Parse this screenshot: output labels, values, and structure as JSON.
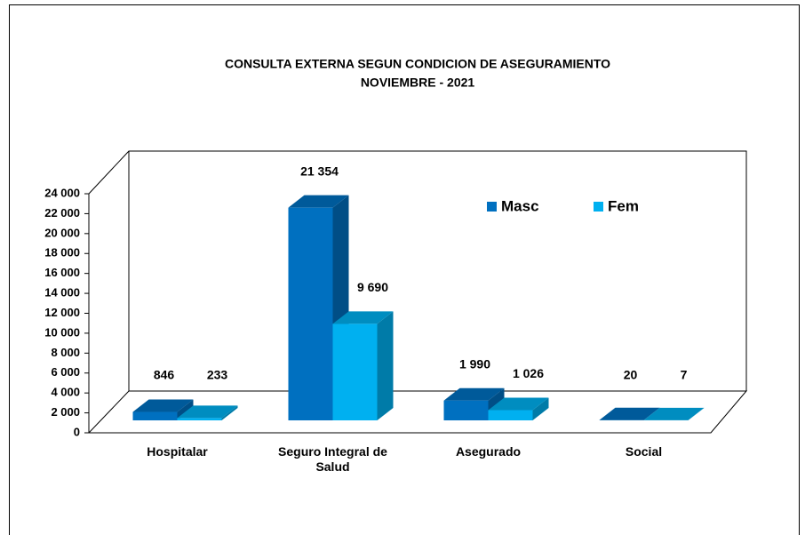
{
  "chart_data": {
    "type": "bar3d",
    "title": "CONSULTA EXTERNA SEGUN CONDICION  DE ASEGURAMIENTO",
    "subtitle": "NOVIEMBRE  - 2021",
    "categories": [
      "Hospitalar",
      "Seguro Integral de Salud",
      "Asegurado",
      "Social"
    ],
    "series": [
      {
        "name": "Masc",
        "color": "#0070c0",
        "values": [
          846,
          21354,
          1990,
          20
        ],
        "value_labels": [
          "846",
          "21 354",
          "1 990",
          "20"
        ]
      },
      {
        "name": "Fem",
        "color": "#00b0f0",
        "values": [
          233,
          9690,
          1026,
          7
        ],
        "value_labels": [
          "233",
          "9 690",
          "1 026",
          "7"
        ]
      }
    ],
    "ylim": [
      0,
      24000
    ],
    "yticks": [
      0,
      {
        "value": 2000,
        "label": "2 000"
      },
      {
        "value": 4000,
        "label": "4 000"
      },
      {
        "value": 6000,
        "label": "6 000"
      },
      {
        "value": 8000,
        "label": "8 000"
      },
      {
        "value": 10000,
        "label": "10 000"
      },
      {
        "value": 12000,
        "label": "12 000"
      },
      {
        "value": 14000,
        "label": "14 000"
      },
      {
        "value": 16000,
        "label": "16 000"
      },
      {
        "value": 18000,
        "label": "18 000"
      },
      {
        "value": 20000,
        "label": "20 000"
      },
      {
        "value": 22000,
        "label": "22 000"
      },
      {
        "value": 24000,
        "label": "24 000"
      }
    ],
    "legend": "top-right"
  }
}
